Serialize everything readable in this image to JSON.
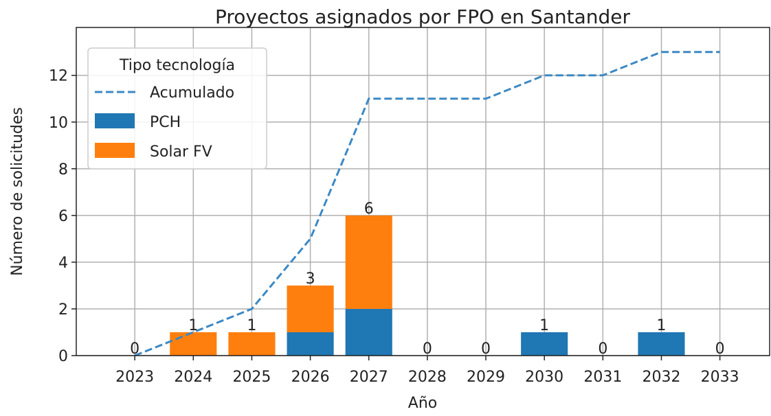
{
  "chart_data": {
    "type": "bar",
    "title": "Proyectos asignados por FPO en Santander",
    "x_label": "Año",
    "y_label": "Número de solicitudes",
    "legend_title": "Tipo tecnología",
    "legend": "upper left",
    "x": [
      2023,
      2024,
      2025,
      2026,
      2027,
      2028,
      2029,
      2030,
      2031,
      2032,
      2033
    ],
    "series": [
      {
        "name": "Acumulado",
        "type": "line",
        "dashed": true,
        "color": "#3b88c4",
        "values": [
          0,
          1,
          2,
          5,
          11,
          11,
          11,
          12,
          12,
          13,
          13
        ]
      },
      {
        "name": "PCH",
        "type": "bar",
        "stacked": true,
        "color": "#1f77b4",
        "values": [
          0,
          0,
          0,
          1,
          2,
          0,
          0,
          1,
          0,
          1,
          0
        ]
      },
      {
        "name": "Solar FV",
        "type": "bar",
        "stacked": true,
        "color": "#ff7f0e",
        "values": [
          0,
          1,
          1,
          2,
          4,
          0,
          0,
          0,
          0,
          0,
          0
        ]
      }
    ],
    "total_labels": [
      0,
      1,
      1,
      3,
      6,
      0,
      0,
      1,
      0,
      1,
      0
    ],
    "xlim": [
      2022,
      2033.85
    ],
    "xticks": [
      2023,
      2024,
      2025,
      2026,
      2027,
      2028,
      2029,
      2030,
      2031,
      2032,
      2033
    ],
    "ylim": [
      0,
      14.05
    ],
    "yticks": [
      0,
      2,
      4,
      6,
      8,
      10,
      12
    ],
    "grid": true
  }
}
